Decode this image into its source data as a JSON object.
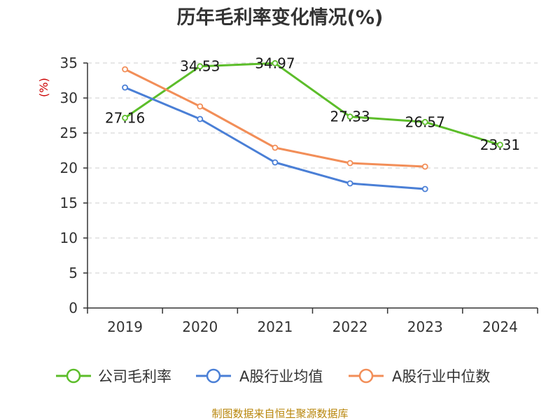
{
  "chart_data": {
    "type": "line",
    "title": "历年毛利率变化情况(%)",
    "ylabel": "(%)",
    "xlabel": "",
    "categories": [
      "2019",
      "2020",
      "2021",
      "2022",
      "2023",
      "2024"
    ],
    "ylim": [
      0,
      35
    ],
    "yticks": [
      0,
      5,
      10,
      15,
      20,
      25,
      30,
      35
    ],
    "grid": true,
    "legend_position": "bottom",
    "series": [
      {
        "name": "公司毛利率",
        "color": "#5cbd2a",
        "values": [
          27.16,
          34.53,
          34.97,
          27.33,
          26.57,
          23.31
        ],
        "labels": [
          "27.16",
          "34.53",
          "34.97",
          "27.33",
          "26.57",
          "23.31"
        ]
      },
      {
        "name": "A股行业均值",
        "color": "#4a7fd6",
        "values": [
          31.5,
          27.0,
          20.8,
          17.8,
          17.0,
          null
        ],
        "labels": []
      },
      {
        "name": "A股行业中位数",
        "color": "#f28e58",
        "values": [
          34.1,
          28.8,
          22.9,
          20.7,
          20.2,
          null
        ],
        "labels": []
      }
    ]
  },
  "footer": {
    "source": "制图数据来自恒生聚源数据库"
  }
}
